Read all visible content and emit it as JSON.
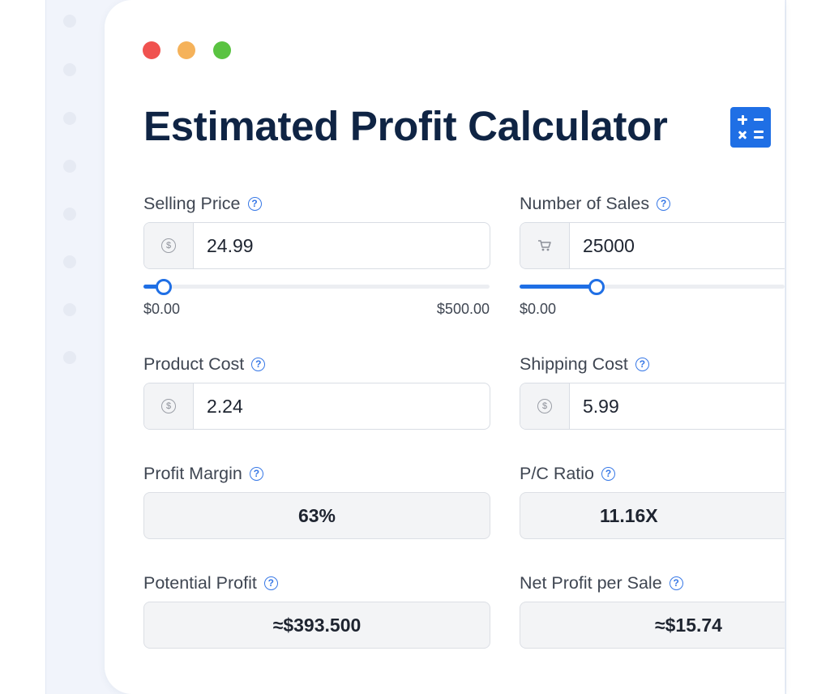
{
  "window": {
    "controls": [
      "close",
      "minimize",
      "maximize"
    ]
  },
  "title": "Estimated Profit Calculator",
  "icons": {
    "title": "calculator-icon",
    "currency": "dollar-coin-icon",
    "sales": "shopping-cart-icon",
    "help": "help-circle-icon"
  },
  "colors": {
    "accent": "#1f6fe5",
    "title": "#0f2444",
    "close": "#f0524f",
    "minimize": "#f5b25a",
    "maximize": "#5ac341"
  },
  "help_glyph": "?",
  "selling_price": {
    "label": "Selling Price",
    "value": "24.99",
    "slider": {
      "min_label": "$0.00",
      "max_label": "$500.00",
      "fraction": 0.05
    }
  },
  "number_of_sales": {
    "label": "Number of Sales",
    "value": "25000",
    "slider": {
      "min_label": "$0.00",
      "fraction": 0.25
    }
  },
  "product_cost": {
    "label": "Product Cost",
    "value": "2.24"
  },
  "shipping_cost": {
    "label": "Shipping Cost",
    "value": "5.99"
  },
  "profit_margin": {
    "label": "Profit Margin",
    "value": "63%"
  },
  "pc_ratio": {
    "label": "P/C Ratio",
    "value": "11.16X"
  },
  "potential_profit": {
    "label": "Potential Profit",
    "value": "≈$393.500"
  },
  "net_profit_per_sale": {
    "label": "Net Profit per Sale",
    "value": "≈$15.74"
  }
}
